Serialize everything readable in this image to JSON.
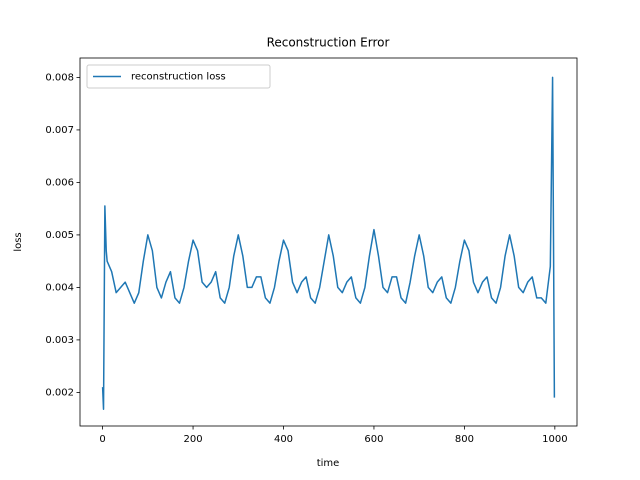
{
  "chart_data": {
    "type": "line",
    "title": "Reconstruction Error",
    "x_label": "time",
    "y_label": "loss",
    "x": [
      0,
      2,
      5,
      8,
      10,
      20,
      30,
      40,
      50,
      60,
      70,
      80,
      90,
      100,
      110,
      120,
      130,
      140,
      150,
      160,
      170,
      180,
      190,
      200,
      210,
      220,
      230,
      240,
      250,
      260,
      270,
      280,
      290,
      300,
      310,
      320,
      330,
      340,
      350,
      360,
      370,
      380,
      390,
      400,
      410,
      420,
      430,
      440,
      450,
      460,
      470,
      480,
      490,
      500,
      510,
      520,
      530,
      540,
      550,
      560,
      570,
      580,
      590,
      600,
      610,
      620,
      630,
      640,
      650,
      660,
      670,
      680,
      690,
      700,
      710,
      720,
      730,
      740,
      750,
      760,
      770,
      780,
      790,
      800,
      810,
      820,
      830,
      840,
      850,
      860,
      870,
      880,
      890,
      900,
      910,
      920,
      930,
      940,
      950,
      960,
      970,
      980,
      990,
      995,
      997,
      999
    ],
    "series": [
      {
        "name": "reconstruction loss",
        "color": "#1f77b4",
        "values": [
          0.0021,
          0.00168,
          0.00555,
          0.0047,
          0.0045,
          0.0043,
          0.0039,
          0.004,
          0.0041,
          0.0039,
          0.0037,
          0.0039,
          0.0045,
          0.005,
          0.0047,
          0.004,
          0.0038,
          0.0041,
          0.0043,
          0.0038,
          0.0037,
          0.004,
          0.0045,
          0.0049,
          0.0047,
          0.0041,
          0.004,
          0.0041,
          0.0043,
          0.0038,
          0.0037,
          0.004,
          0.0046,
          0.005,
          0.0046,
          0.004,
          0.004,
          0.0042,
          0.0042,
          0.0038,
          0.0037,
          0.004,
          0.0045,
          0.0049,
          0.0047,
          0.0041,
          0.0039,
          0.0041,
          0.0042,
          0.0038,
          0.0037,
          0.004,
          0.0045,
          0.005,
          0.0046,
          0.004,
          0.0039,
          0.0041,
          0.0042,
          0.0038,
          0.0037,
          0.004,
          0.0046,
          0.0051,
          0.0046,
          0.004,
          0.0039,
          0.0042,
          0.0042,
          0.0038,
          0.0037,
          0.0041,
          0.0046,
          0.005,
          0.0046,
          0.004,
          0.0039,
          0.0041,
          0.0042,
          0.0038,
          0.0037,
          0.004,
          0.0045,
          0.0049,
          0.0047,
          0.0041,
          0.0039,
          0.0041,
          0.0042,
          0.0038,
          0.0037,
          0.004,
          0.0046,
          0.005,
          0.0046,
          0.004,
          0.0039,
          0.0041,
          0.0042,
          0.0038,
          0.0038,
          0.0037,
          0.0044,
          0.008,
          0.005,
          0.0019
        ]
      }
    ],
    "xlim": [
      -50,
      1049
    ],
    "ylim": [
      0.00136,
      0.00837
    ],
    "xticks": [
      0,
      200,
      400,
      600,
      800,
      1000
    ],
    "yticks": [
      0.002,
      0.003,
      0.004,
      0.005,
      0.006,
      0.007,
      0.008
    ],
    "legend": "upper left"
  }
}
